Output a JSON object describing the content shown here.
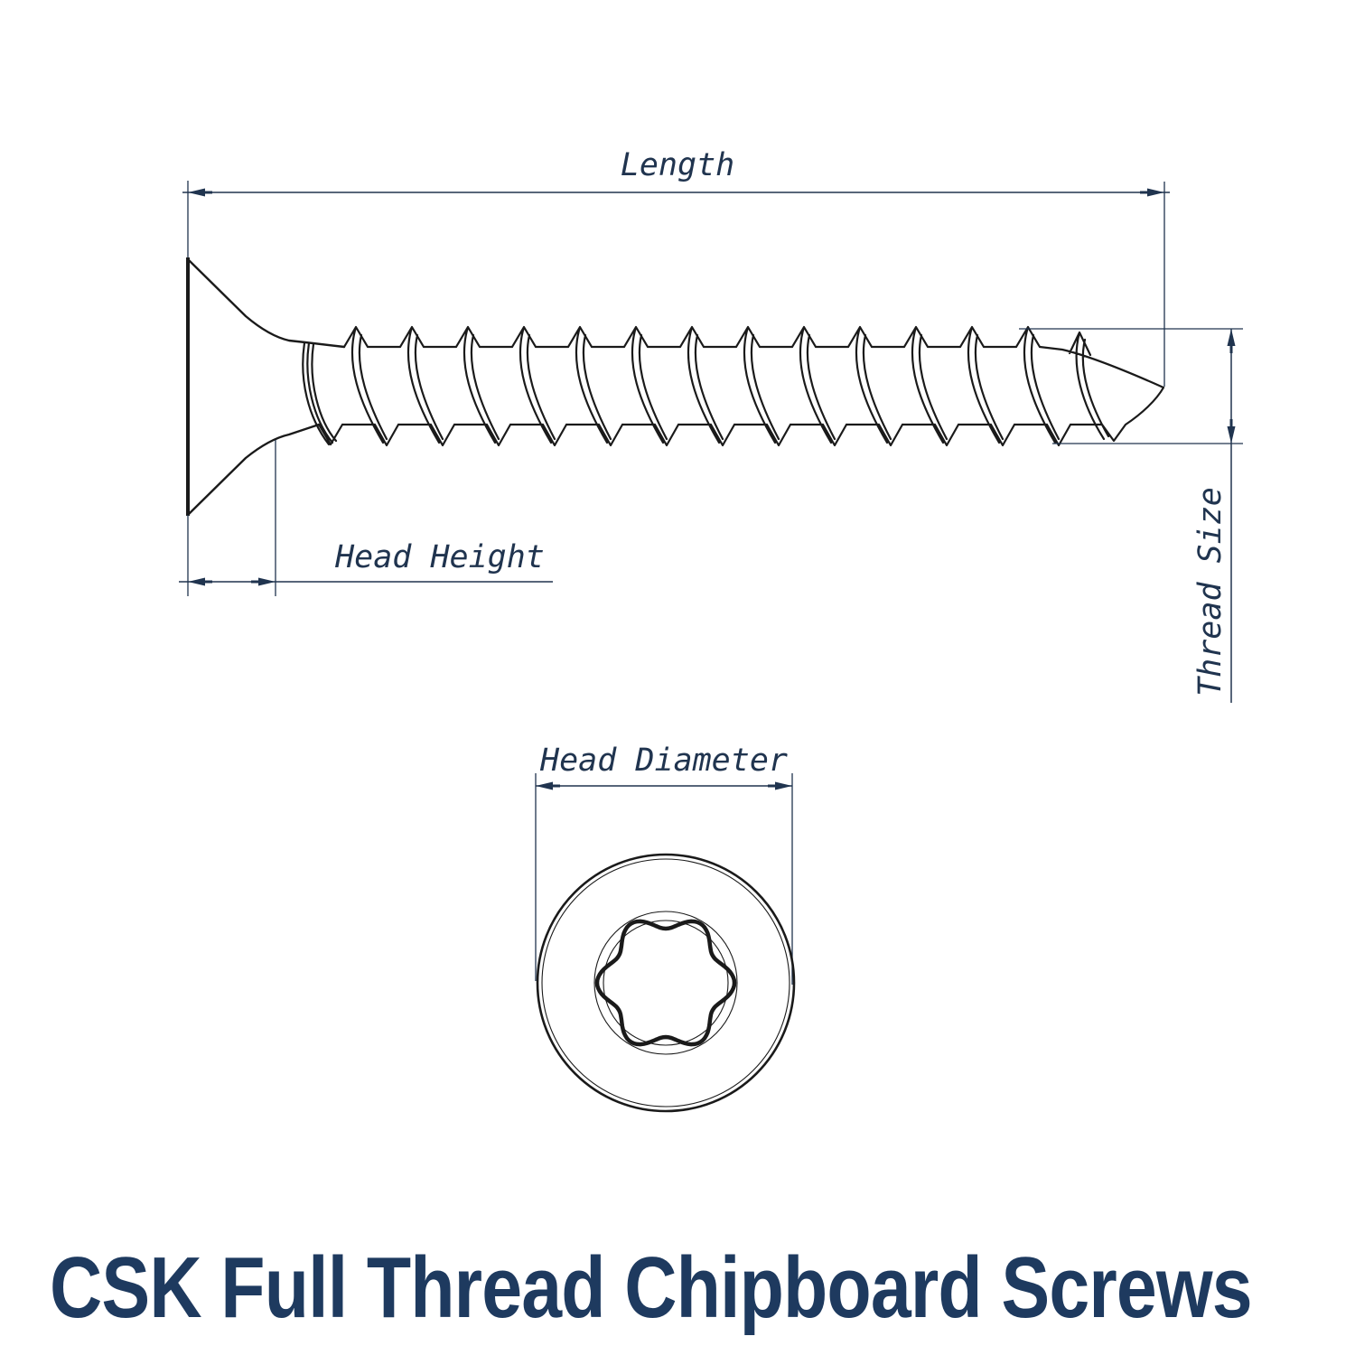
{
  "title": {
    "text": "CSK Full Thread Chipboard Screws",
    "color": "#1e3a5f"
  },
  "dimensions": {
    "length": "Length",
    "head_height": "Head Height",
    "thread_size": "Thread Size",
    "head_diameter": "Head Diameter"
  },
  "colors": {
    "background": "#ffffff",
    "line_art": "#1a1a1a",
    "dimension": "#20344f"
  }
}
